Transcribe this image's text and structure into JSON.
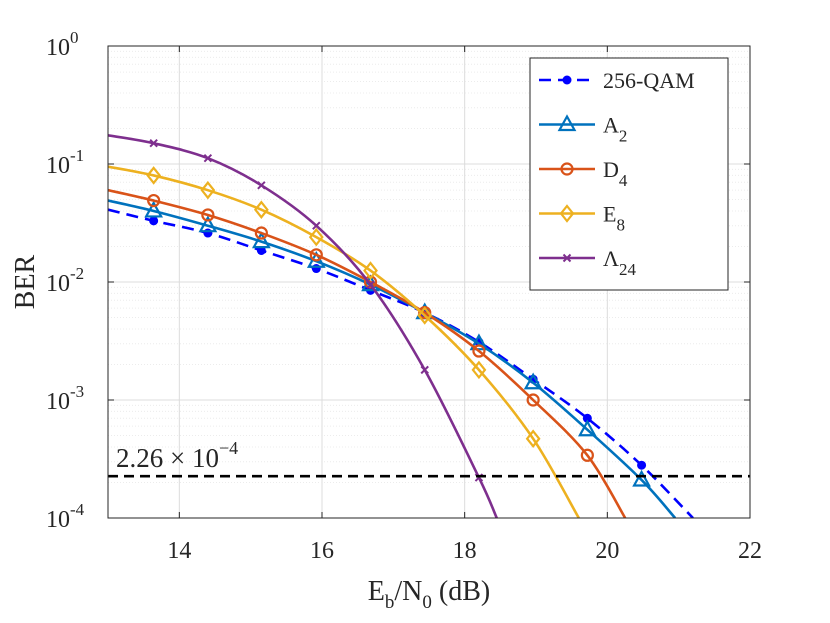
{
  "chart_data": {
    "type": "line",
    "title": "",
    "xlabel": {
      "base": "E",
      "sub1": "b",
      "mid": "/N",
      "sub2": "0",
      "tail": " (dB)"
    },
    "ylabel": "BER",
    "xlim": [
      13,
      22
    ],
    "ylim": [
      0.0001,
      1
    ],
    "yscale": "log",
    "grid": true,
    "x_ticks": [
      "14",
      "16",
      "18",
      "20",
      "22"
    ],
    "y_ticks": [
      {
        "base": "10",
        "exp": "-4"
      },
      {
        "base": "10",
        "exp": "-3"
      },
      {
        "base": "10",
        "exp": "-2"
      },
      {
        "base": "10",
        "exp": "-1"
      },
      {
        "base": "10",
        "exp": "0"
      }
    ],
    "legend_position": "top-right",
    "threshold": {
      "value": 0.000226,
      "label_main": "2.26 × 10",
      "label_exp": "−4",
      "color": "#000000"
    },
    "series": [
      {
        "name": "256-QAM",
        "label_main": "256-QAM",
        "label_sub": "",
        "color": "#0000ff",
        "style": "dashed",
        "marker": "dot",
        "x": [
          13,
          13.64,
          14.4,
          15.15,
          15.92,
          16.68,
          17.44,
          18.2,
          18.96,
          19.72,
          20.48,
          21.2
        ],
        "y": [
          0.041,
          0.033,
          0.026,
          0.0185,
          0.013,
          0.0085,
          0.0055,
          0.0031,
          0.0015,
          0.0007,
          0.00028,
          0.0001
        ],
        "markers": [
          false,
          true,
          true,
          true,
          true,
          true,
          true,
          true,
          true,
          true,
          true,
          false
        ]
      },
      {
        "name": "A2",
        "label_main": "A",
        "label_sub": "2",
        "color": "#0072bd",
        "style": "solid",
        "marker": "triangle",
        "x": [
          13,
          13.64,
          14.4,
          15.15,
          15.92,
          16.68,
          17.44,
          18.2,
          18.96,
          19.72,
          20.48,
          20.95
        ],
        "y": [
          0.049,
          0.04,
          0.03,
          0.022,
          0.015,
          0.0095,
          0.0055,
          0.003,
          0.0014,
          0.00056,
          0.00021,
          0.0001
        ],
        "markers": [
          false,
          true,
          true,
          true,
          true,
          true,
          true,
          true,
          true,
          true,
          true,
          false
        ]
      },
      {
        "name": "D4",
        "label_main": "D",
        "label_sub": "4",
        "color": "#d95319",
        "style": "solid",
        "marker": "circle",
        "x": [
          13,
          13.64,
          14.4,
          15.15,
          15.92,
          16.68,
          17.44,
          18.2,
          18.96,
          19.72,
          20.25
        ],
        "y": [
          0.06,
          0.049,
          0.037,
          0.026,
          0.017,
          0.01,
          0.0055,
          0.0026,
          0.001,
          0.00034,
          0.0001
        ],
        "markers": [
          false,
          true,
          true,
          true,
          true,
          true,
          true,
          true,
          true,
          true,
          false
        ]
      },
      {
        "name": "E8",
        "label_main": "E",
        "label_sub": "8",
        "color": "#edb120",
        "style": "solid",
        "marker": "diamond",
        "x": [
          13,
          13.64,
          14.4,
          15.15,
          15.92,
          16.68,
          17.44,
          18.2,
          18.96,
          19.6
        ],
        "y": [
          0.095,
          0.08,
          0.06,
          0.041,
          0.024,
          0.0125,
          0.0052,
          0.0018,
          0.00047,
          0.0001
        ],
        "markers": [
          false,
          true,
          true,
          true,
          true,
          true,
          true,
          true,
          true,
          false
        ]
      },
      {
        "name": "Λ24",
        "label_main": "Λ",
        "label_sub": "24",
        "color": "#7e2f8e",
        "style": "solid",
        "marker": "x",
        "x": [
          13,
          13.64,
          14.4,
          15.15,
          15.92,
          16.68,
          17.44,
          18.2,
          18.45
        ],
        "y": [
          0.175,
          0.15,
          0.112,
          0.066,
          0.03,
          0.0095,
          0.0018,
          0.00022,
          0.0001
        ],
        "markers": [
          false,
          true,
          true,
          true,
          true,
          true,
          true,
          true,
          false
        ]
      }
    ]
  }
}
